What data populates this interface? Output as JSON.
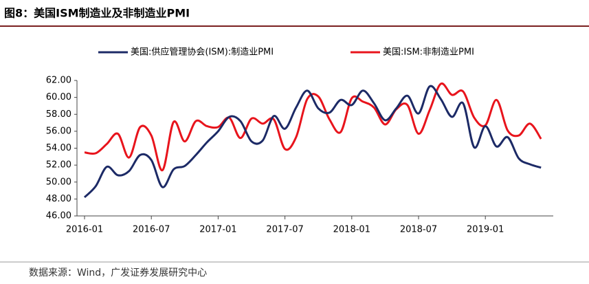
{
  "chart_data": {
    "type": "line",
    "title": "图8：美国ISM制造业及非制造业PMI",
    "source": "数据来源：Wind，广发证券发展研究中心",
    "categories": [
      "2016-01",
      null,
      null,
      null,
      null,
      null,
      "2016-07",
      null,
      null,
      null,
      null,
      null,
      "2017-01",
      null,
      null,
      null,
      null,
      null,
      "2017-07",
      null,
      null,
      null,
      null,
      null,
      "2018-01",
      null,
      null,
      null,
      null,
      null,
      "2018-07",
      null,
      null,
      null,
      null,
      null,
      "2019-01",
      null,
      null,
      null,
      null,
      null
    ],
    "series": [
      {
        "name": "美国:供应管理协会(ISM):制造业PMI",
        "color": "#1c2a66",
        "values": [
          48.2,
          49.5,
          51.8,
          50.8,
          51.3,
          53.2,
          52.6,
          49.4,
          51.5,
          51.9,
          53.2,
          54.7,
          56.0,
          57.7,
          57.2,
          54.8,
          54.9,
          57.8,
          56.3,
          58.8,
          60.8,
          58.7,
          58.2,
          59.7,
          59.1,
          60.8,
          59.3,
          57.3,
          58.7,
          60.2,
          58.1,
          61.3,
          59.8,
          57.7,
          59.3,
          54.1,
          56.6,
          54.2,
          55.3,
          52.8,
          52.1,
          51.7
        ]
      },
      {
        "name": "美国:ISM:非制造业PMI",
        "color": "#e8141c",
        "values": [
          53.5,
          53.4,
          54.5,
          55.7,
          52.9,
          56.5,
          55.5,
          51.4,
          57.1,
          54.8,
          57.2,
          56.6,
          56.5,
          57.6,
          55.2,
          57.5,
          56.9,
          57.4,
          53.9,
          55.3,
          59.8,
          60.1,
          57.4,
          55.9,
          59.9,
          59.5,
          58.8,
          56.8,
          58.6,
          59.1,
          55.7,
          58.5,
          61.6,
          60.3,
          60.7,
          57.6,
          56.7,
          59.7,
          56.1,
          55.5,
          56.9,
          55.1
        ]
      }
    ],
    "ylim": [
      46,
      62
    ],
    "yticks": [
      {
        "value": 46,
        "label": "46.00"
      },
      {
        "value": 48,
        "label": "48.00"
      },
      {
        "value": 50,
        "label": "50.00"
      },
      {
        "value": 52,
        "label": "52.00"
      },
      {
        "value": 54,
        "label": "54.00"
      },
      {
        "value": 56,
        "label": "56.00"
      },
      {
        "value": 58,
        "label": "58.00"
      },
      {
        "value": 60,
        "label": "60.00"
      },
      {
        "value": 62,
        "label": "62.00"
      }
    ],
    "grid": false,
    "legend": "top"
  }
}
